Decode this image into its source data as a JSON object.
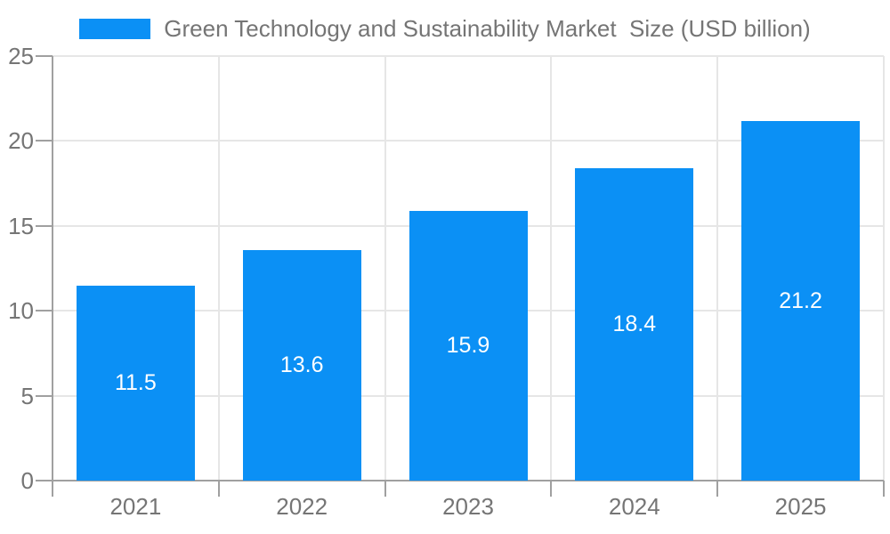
{
  "chart_data": {
    "type": "bar",
    "title": "Green Technology and Sustainability Market  Size (USD billion)",
    "series_name": "Green Technology and Sustainability Market  Size (USD billion)",
    "categories": [
      "2021",
      "2022",
      "2023",
      "2024",
      "2025"
    ],
    "values": [
      11.5,
      13.6,
      15.9,
      18.4,
      21.2
    ],
    "value_labels": [
      "11.5",
      "13.6",
      "15.9",
      "18.4",
      "21.2"
    ],
    "xlabel": "",
    "ylabel": "",
    "ylim": [
      0,
      25
    ],
    "yticks": [
      0,
      5,
      10,
      15,
      20,
      25
    ],
    "grid": true,
    "legend_position": "top",
    "colors": {
      "bar": "#0b90f5",
      "value_label": "#ffffff",
      "gridline": "#e6e6e6",
      "axis_line": "#a0a0a0",
      "tick_label": "#757575",
      "background": "#ffffff"
    }
  }
}
